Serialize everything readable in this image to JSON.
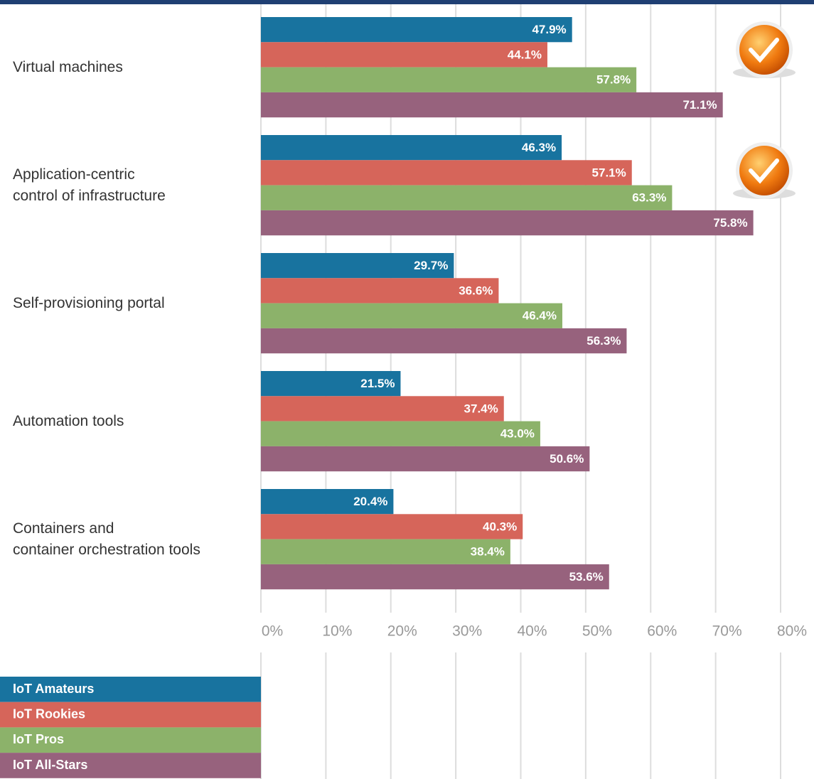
{
  "chart_data": {
    "type": "bar",
    "orientation": "horizontal",
    "categories": [
      "Virtual machines",
      "Application-centric\ncontrol of infrastructure",
      "Self-provisioning portal",
      "Automation tools",
      "Containers and\ncontainer orchestration tools"
    ],
    "series": [
      {
        "name": "IoT Amateurs",
        "color": "#18739f",
        "values": [
          47.9,
          46.3,
          29.7,
          21.5,
          20.4
        ],
        "value_labels": [
          "47.9%",
          "46.3%",
          "29.7%",
          "21.5%",
          "20.4%"
        ]
      },
      {
        "name": "IoT Rookies",
        "color": "#d6655a",
        "values": [
          44.1,
          57.1,
          36.6,
          37.4,
          40.3
        ],
        "value_labels": [
          "44.1%",
          "57.1%",
          "36.6%",
          "37.4%",
          "40.3%"
        ]
      },
      {
        "name": "IoT Pros",
        "color": "#8cb26a",
        "values": [
          57.8,
          63.3,
          46.4,
          43.0,
          38.4
        ],
        "value_labels": [
          "57.8%",
          "63.3%",
          "46.4%",
          "43.0%",
          "38.4%"
        ]
      },
      {
        "name": "IoT All-Stars",
        "color": "#97627d",
        "values": [
          71.1,
          75.8,
          56.3,
          50.6,
          53.6
        ],
        "value_labels": [
          "71.1%",
          "75.8%",
          "56.3%",
          "50.6%",
          "53.6%"
        ]
      }
    ],
    "xlim": [
      0,
      80
    ],
    "xticks": [
      {
        "value": 0,
        "label": "0%"
      },
      {
        "value": 10,
        "label": "10%"
      },
      {
        "value": 20,
        "label": "20%"
      },
      {
        "value": 30,
        "label": "30%"
      },
      {
        "value": 40,
        "label": "40%"
      },
      {
        "value": 50,
        "label": "50%"
      },
      {
        "value": 60,
        "label": "60%"
      },
      {
        "value": 70,
        "label": "70%"
      },
      {
        "value": 80,
        "label": "80%"
      }
    ],
    "grid": true,
    "legend": "bottom-left"
  }
}
